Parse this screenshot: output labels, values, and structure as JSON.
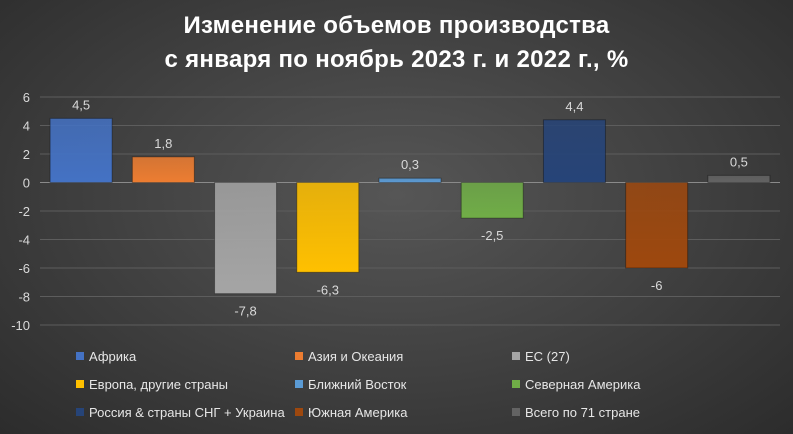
{
  "chart_data": {
    "type": "bar",
    "title_line1": "Изменение объемов производства",
    "title_line2": "с января по ноябрь 2023 г. и 2022 г., %",
    "ylim": [
      -10,
      6
    ],
    "yticks": [
      6,
      4,
      2,
      0,
      -2,
      -4,
      -6,
      -8,
      -10
    ],
    "grid": true,
    "legend_position": "bottom",
    "series": [
      {
        "name": "Африка",
        "value": 4.5,
        "label": "4,5",
        "color": "#4472c4"
      },
      {
        "name": "Азия и Океания",
        "value": 1.8,
        "label": "1,8",
        "color": "#ed7d31"
      },
      {
        "name": "ЕС (27)",
        "value": -7.8,
        "label": "-7,8",
        "color": "#a5a5a5"
      },
      {
        "name": "Европа, другие страны",
        "value": -6.3,
        "label": "-6,3",
        "color": "#ffc000"
      },
      {
        "name": "Ближний Восток",
        "value": 0.3,
        "label": "0,3",
        "color": "#5b9bd5"
      },
      {
        "name": "Северная Америка",
        "value": -2.5,
        "label": "-2,5",
        "color": "#70ad47"
      },
      {
        "name": "Россия & страны СНГ + Украина",
        "value": 4.4,
        "label": "4,4",
        "color": "#264478"
      },
      {
        "name": "Южная Америка",
        "value": -6.0,
        "label": "-6",
        "color": "#9e480e"
      },
      {
        "name": "Всего по 71 стране",
        "value": 0.5,
        "label": "0,5",
        "color": "#636363"
      }
    ]
  }
}
